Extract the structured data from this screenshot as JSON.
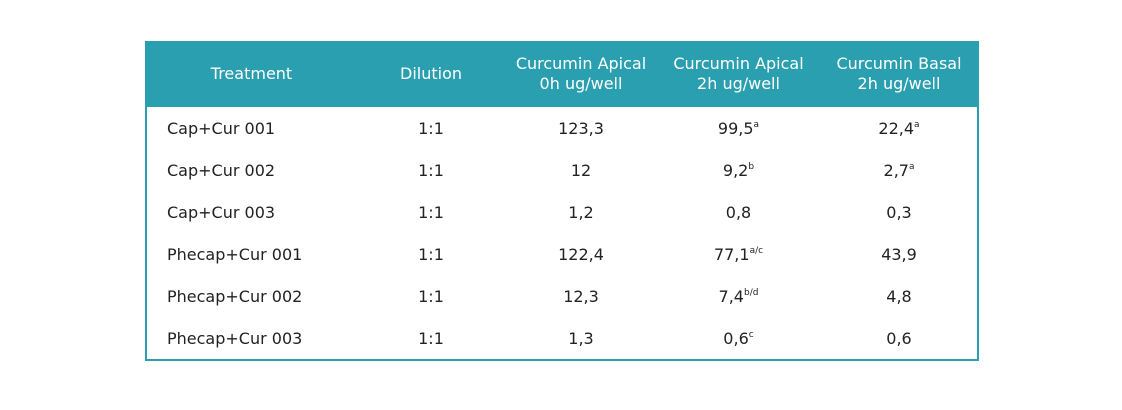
{
  "table": {
    "header": [
      [
        "Treatment"
      ],
      [
        "Dilution"
      ],
      [
        "Curcumin Apical",
        "0h ug/well"
      ],
      [
        "Curcumin Apical",
        "2h ug/well"
      ],
      [
        "Curcumin Basal",
        "2h ug/well"
      ]
    ],
    "rows": [
      [
        "Cap+Cur 001",
        "1:1",
        "123,3",
        {
          "text": "99,5",
          "sup": "a"
        },
        {
          "text": "22,4",
          "sup": "a"
        }
      ],
      [
        "Cap+Cur 002",
        "1:1",
        "12",
        {
          "text": "9,2",
          "sup": "b"
        },
        {
          "text": "2,7",
          "sup": "a"
        }
      ],
      [
        "Cap+Cur 003",
        "1:1",
        "1,2",
        "0,8",
        "0,3"
      ],
      [
        "Phecap+Cur 001",
        "1:1",
        "122,4",
        {
          "text": "77,1",
          "sup": "a/c"
        },
        "43,9"
      ],
      [
        "Phecap+Cur 002",
        "1:1",
        "12,3",
        {
          "text": "7,4",
          "sup": "b/d"
        },
        "4,8"
      ],
      [
        "Phecap+Cur 003",
        "1:1",
        "1,3",
        {
          "text": "0,6",
          "sup": "c"
        },
        "0,6"
      ]
    ]
  }
}
